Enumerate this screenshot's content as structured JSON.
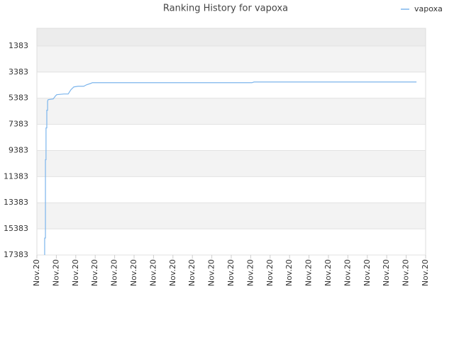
{
  "chart_data": {
    "type": "line",
    "title": "Ranking History for vapoxa",
    "series": [
      {
        "name": "vapoxa",
        "color": "#7cb5ec",
        "x": [
          0.4,
          0.4,
          0.44,
          0.44,
          0.47,
          0.47,
          0.51,
          0.51,
          0.55,
          0.55,
          0.58,
          0.84,
          0.95,
          1.02,
          1.39,
          1.61,
          1.75,
          1.9,
          2.12,
          2.41,
          2.55,
          2.77,
          2.85,
          11.06,
          11.17,
          19.53
        ],
        "values": [
          17383,
          16086,
          16086,
          10086,
          10086,
          7653,
          7653,
          6302,
          6302,
          5600,
          5492,
          5437,
          5221,
          5113,
          5059,
          5059,
          4735,
          4518,
          4464,
          4464,
          4356,
          4248,
          4194,
          4194,
          4140,
          4140
        ]
      }
    ],
    "xlim": [
      0,
      20
    ],
    "xticks": [
      {
        "value": 0,
        "label": "Nov.20"
      },
      {
        "value": 1,
        "label": "Nov.20"
      },
      {
        "value": 2,
        "label": "Nov.20"
      },
      {
        "value": 3,
        "label": "Nov.20"
      },
      {
        "value": 4,
        "label": "Nov.20"
      },
      {
        "value": 5,
        "label": "Nov.20"
      },
      {
        "value": 6,
        "label": "Nov.20"
      },
      {
        "value": 7,
        "label": "Nov.20"
      },
      {
        "value": 8,
        "label": "Nov.20"
      },
      {
        "value": 9,
        "label": "Nov.20"
      },
      {
        "value": 10,
        "label": "Nov.20"
      },
      {
        "value": 11,
        "label": "Nov.20"
      },
      {
        "value": 12,
        "label": "Nov.20"
      },
      {
        "value": 13,
        "label": "Nov.20"
      },
      {
        "value": 14,
        "label": "Nov.20"
      },
      {
        "value": 15,
        "label": "Nov.20"
      },
      {
        "value": 16,
        "label": "Nov.20"
      },
      {
        "value": 17,
        "label": "Nov.20"
      },
      {
        "value": 18,
        "label": "Nov.20"
      },
      {
        "value": 19,
        "label": "Nov.20"
      },
      {
        "value": 20,
        "label": "Nov.20"
      }
    ],
    "ylim": [
      17383,
      32
    ],
    "yticks": [
      1383,
      3383,
      5383,
      7383,
      9383,
      11383,
      13383,
      15383,
      17383
    ],
    "grid": true,
    "legend": "top-right"
  }
}
